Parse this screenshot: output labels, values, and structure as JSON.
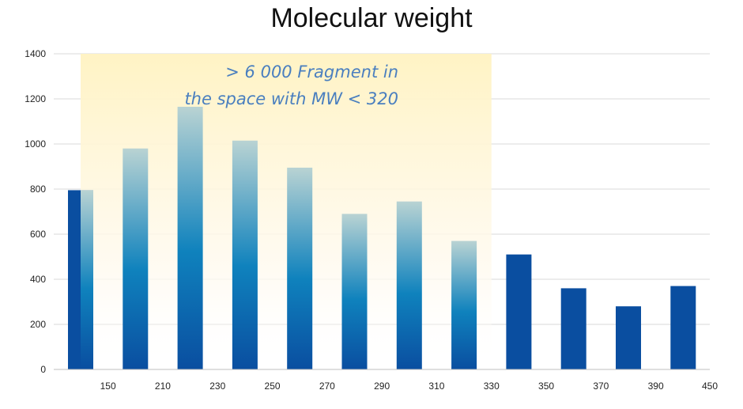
{
  "chart_data": {
    "type": "bar",
    "title": "Molecular weight",
    "xlabel": "",
    "ylabel": "",
    "ylim": [
      0,
      1400
    ],
    "yticks": [
      0,
      200,
      400,
      600,
      800,
      1000,
      1200,
      1400
    ],
    "xticks": [
      150,
      210,
      230,
      250,
      270,
      290,
      310,
      330,
      350,
      370,
      390,
      450
    ],
    "values": [
      795,
      980,
      1165,
      1015,
      895,
      690,
      745,
      570,
      510,
      360,
      280,
      370
    ],
    "grid": true,
    "legend": "none",
    "highlight": {
      "label": "MW < 320",
      "bars_covered": 8,
      "color": "#fff3c4"
    },
    "annotations": [
      "> 6 000 Fragment in",
      "the space with MW < 320"
    ],
    "colors": {
      "bar_dark": "#0a4ea0",
      "bar_mid": "#0f82bd",
      "bar_light": "#b9d3d3",
      "gridline": "#d9d9d9",
      "annotation": "#4a7fbf"
    }
  }
}
